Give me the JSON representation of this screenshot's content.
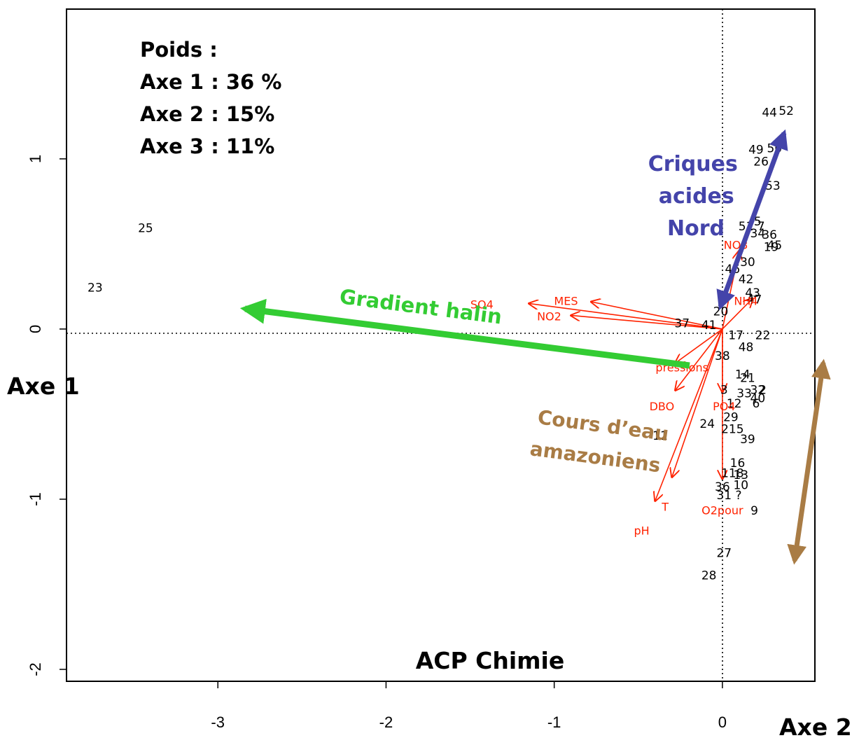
{
  "chart_data": {
    "type": "scatter",
    "title": "ACP Chimie",
    "xlabel": "Axe 2",
    "ylabel": "Axe 1",
    "xlim": [
      -3.9,
      0.55
    ],
    "ylim": [
      -2.07,
      1.88
    ],
    "x_ticks": [
      "-3",
      "-2",
      "-1",
      "0"
    ],
    "y_ticks": [
      "-2",
      "-1",
      "0",
      "1"
    ],
    "grid": false,
    "weights": {
      "heading": "Poids :",
      "lines": [
        "Axe 1 : 36 %",
        "Axe 2 : 15%",
        "Axe 3 : 11%"
      ]
    },
    "observations": [
      {
        "label": "25",
        "x": -3.43,
        "y": 0.59
      },
      {
        "label": "23",
        "x": -3.73,
        "y": 0.24
      },
      {
        "label": "44",
        "x": 0.28,
        "y": 1.27
      },
      {
        "label": "52",
        "x": 0.38,
        "y": 1.28
      },
      {
        "label": "49",
        "x": 0.2,
        "y": 1.05
      },
      {
        "label": "50",
        "x": 0.31,
        "y": 1.06
      },
      {
        "label": "26",
        "x": 0.23,
        "y": 0.98
      },
      {
        "label": "53",
        "x": 0.3,
        "y": 0.84
      },
      {
        "label": "5",
        "x": 0.21,
        "y": 0.63
      },
      {
        "label": "51",
        "x": 0.14,
        "y": 0.6
      },
      {
        "label": "7",
        "x": 0.23,
        "y": 0.6
      },
      {
        "label": "34",
        "x": 0.21,
        "y": 0.56
      },
      {
        "label": "36",
        "x": 0.28,
        "y": 0.55
      },
      {
        "label": "45",
        "x": 0.31,
        "y": 0.49
      },
      {
        "label": "19",
        "x": 0.29,
        "y": 0.48
      },
      {
        "label": "30",
        "x": 0.15,
        "y": 0.39
      },
      {
        "label": "46",
        "x": 0.06,
        "y": 0.35
      },
      {
        "label": "42",
        "x": 0.14,
        "y": 0.29
      },
      {
        "label": "43",
        "x": 0.18,
        "y": 0.21
      },
      {
        "label": "47",
        "x": 0.19,
        "y": 0.17
      },
      {
        "label": "20",
        "x": -0.01,
        "y": 0.1
      },
      {
        "label": "41",
        "x": -0.08,
        "y": 0.02
      },
      {
        "label": "37",
        "x": -0.24,
        "y": 0.03
      },
      {
        "label": "17",
        "x": 0.08,
        "y": -0.04
      },
      {
        "label": "22",
        "x": 0.24,
        "y": -0.04
      },
      {
        "label": "48",
        "x": 0.14,
        "y": -0.11
      },
      {
        "label": "38",
        "x": 0.0,
        "y": -0.16
      },
      {
        "label": "14",
        "x": 0.12,
        "y": -0.27
      },
      {
        "label": "21",
        "x": 0.15,
        "y": -0.29
      },
      {
        "label": "3",
        "x": 0.01,
        "y": -0.36
      },
      {
        "label": "33",
        "x": 0.13,
        "y": -0.38
      },
      {
        "label": "32",
        "x": 0.21,
        "y": -0.36
      },
      {
        "label": "2",
        "x": 0.24,
        "y": -0.36
      },
      {
        "label": "40",
        "x": 0.21,
        "y": -0.41
      },
      {
        "label": "6",
        "x": 0.2,
        "y": -0.44
      },
      {
        "label": "12",
        "x": 0.07,
        "y": -0.44
      },
      {
        "label": "29",
        "x": 0.05,
        "y": -0.52
      },
      {
        "label": "24",
        "x": -0.09,
        "y": -0.56
      },
      {
        "label": "215",
        "x": 0.06,
        "y": -0.59
      },
      {
        "label": "39",
        "x": 0.15,
        "y": -0.65
      },
      {
        "label": "11",
        "x": -0.37,
        "y": -0.63
      },
      {
        "label": "16",
        "x": 0.09,
        "y": -0.79
      },
      {
        "label": "118",
        "x": 0.06,
        "y": -0.85
      },
      {
        "label": "13",
        "x": 0.11,
        "y": -0.86
      },
      {
        "label": "36",
        "x": 0.0,
        "y": -0.93
      },
      {
        "label": "10",
        "x": 0.11,
        "y": -0.92
      },
      {
        "label": "31 ?",
        "x": 0.04,
        "y": -0.98
      },
      {
        "label": "9",
        "x": 0.19,
        "y": -1.07
      },
      {
        "label": "27",
        "x": 0.01,
        "y": -1.32
      },
      {
        "label": "28",
        "x": -0.08,
        "y": -1.45
      }
    ],
    "variables": [
      {
        "label": "SO4",
        "x": -1.15,
        "y": 0.15,
        "lx": -1.43,
        "ly": 0.14
      },
      {
        "label": "MES",
        "x": -0.78,
        "y": 0.16,
        "lx": -0.93,
        "ly": 0.16
      },
      {
        "label": "NO2",
        "x": -0.9,
        "y": 0.08,
        "lx": -1.03,
        "ly": 0.07
      },
      {
        "label": "NO3",
        "x": 0.1,
        "y": 0.46,
        "lx": 0.08,
        "ly": 0.49
      },
      {
        "label": "NH4",
        "x": 0.18,
        "y": 0.18,
        "lx": 0.14,
        "ly": 0.16
      },
      {
        "label": "pressions",
        "x": -0.28,
        "y": -0.2,
        "lx": -0.24,
        "ly": -0.23
      },
      {
        "label": "DBO",
        "x": -0.28,
        "y": -0.36,
        "lx": -0.36,
        "ly": -0.46
      },
      {
        "label": "PO4",
        "x": 0.0,
        "y": -0.37,
        "lx": 0.01,
        "ly": -0.46
      },
      {
        "label": "T",
        "x": -0.3,
        "y": -0.87,
        "lx": -0.34,
        "ly": -1.05
      },
      {
        "label": "pH",
        "x": -0.4,
        "y": -1.01,
        "lx": -0.48,
        "ly": -1.19
      },
      {
        "label": "O2pour",
        "x": 0.0,
        "y": -0.88,
        "lx": 0.0,
        "ly": -1.07
      }
    ],
    "annotations": [
      {
        "text": "Gradient halin",
        "color": "#33cc33"
      },
      {
        "text": "Criques acides Nord",
        "lines": [
          "Criques",
          "acides",
          "Nord"
        ],
        "color": "#4444aa"
      },
      {
        "text": "Cours d’eau amazoniens",
        "lines": [
          "Cours d’eau",
          "amazoniens"
        ],
        "color": "#a97c45"
      }
    ],
    "colors": {
      "observation": "#000000",
      "variable": "#ff2200",
      "halin": "#33cc33",
      "criques": "#4444aa",
      "amazoniens": "#a97c45"
    }
  }
}
